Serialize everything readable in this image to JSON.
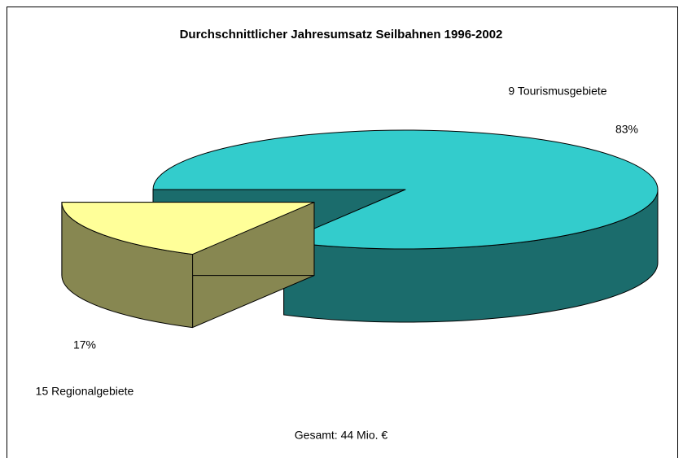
{
  "chart_data": {
    "type": "pie",
    "title": "Durchschnittlicher Jahresumsatz Seilbahnen 1996-2002",
    "categories": [
      "9 Tourismusgebiete",
      "15 Regionalgebiete"
    ],
    "values": [
      83,
      17
    ],
    "value_labels": [
      "83%",
      "17%"
    ],
    "colors": [
      "#33cccc",
      "#ffff99"
    ],
    "explode": [
      false,
      true
    ],
    "annotation": "Gesamt: 44 Mio. €"
  }
}
